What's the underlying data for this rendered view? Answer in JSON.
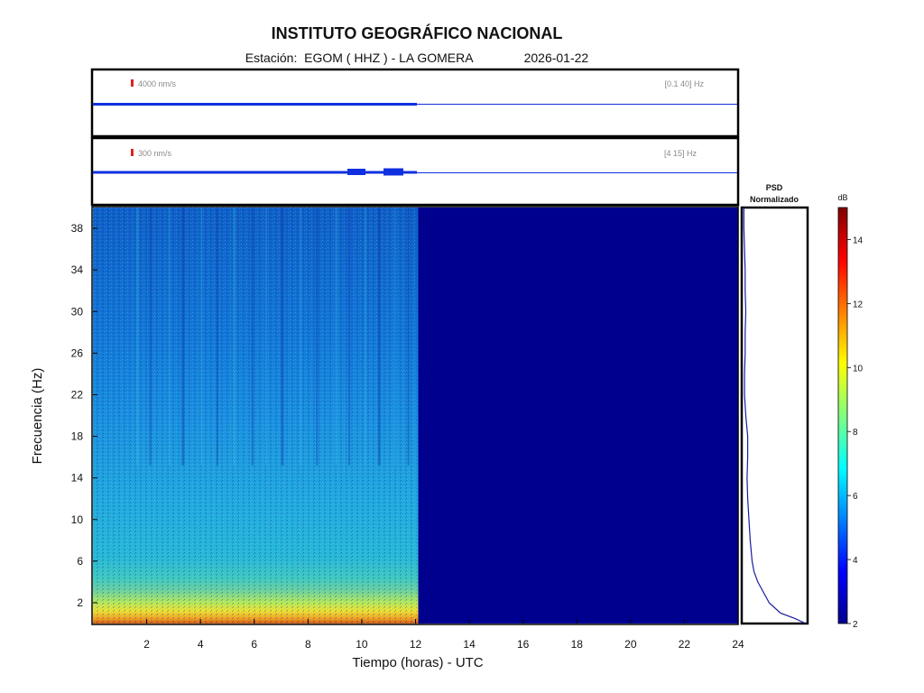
{
  "header": {
    "title": "INSTITUTO GEOGRÁFICO NACIONAL",
    "station_label": "Estación:  EGOM ( HHZ ) - LA GOMERA",
    "date": "2026-01-22"
  },
  "traces": [
    {
      "scale_label": "4000 nm/s",
      "band_label": "[0.1 40] Hz",
      "color": "#1030e0",
      "scale_color": "#e02020"
    },
    {
      "scale_label": "300 nm/s",
      "band_label": "[4 15] Hz",
      "color": "#1030e0",
      "scale_color": "#e02020"
    }
  ],
  "psd": {
    "title_line1": "PSD",
    "title_line2": "Normalizado",
    "color": "#1a1aa0"
  },
  "colorbar": {
    "unit": "dB",
    "ticks": [
      "2",
      "4",
      "6",
      "8",
      "10",
      "12",
      "14"
    ]
  },
  "chart_data": {
    "type": "heatmap",
    "xlabel": "Tiempo (horas) - UTC",
    "ylabel": "Frecuencia  (Hz)",
    "xlim": [
      0,
      24
    ],
    "ylim": [
      0,
      40
    ],
    "xticks": [
      2,
      4,
      6,
      8,
      10,
      12,
      14,
      16,
      18,
      20,
      22,
      24
    ],
    "yticks": [
      2,
      6,
      10,
      14,
      18,
      22,
      26,
      30,
      34,
      38
    ],
    "data_end_hour": 12.1,
    "clim": [
      2,
      15
    ],
    "colormap": "jet",
    "psd_profile": {
      "freq_hz": [
        0,
        0.5,
        1,
        2,
        3,
        4,
        5,
        6,
        8,
        10,
        12,
        14,
        16,
        18,
        20,
        22,
        24,
        26,
        28,
        30,
        32,
        34,
        36,
        38,
        40
      ],
      "normalized_power": [
        1.0,
        0.82,
        0.6,
        0.42,
        0.33,
        0.24,
        0.18,
        0.15,
        0.12,
        0.1,
        0.08,
        0.07,
        0.08,
        0.08,
        0.05,
        0.03,
        0.03,
        0.04,
        0.04,
        0.05,
        0.04,
        0.04,
        0.03,
        0.02,
        0.02
      ]
    }
  }
}
